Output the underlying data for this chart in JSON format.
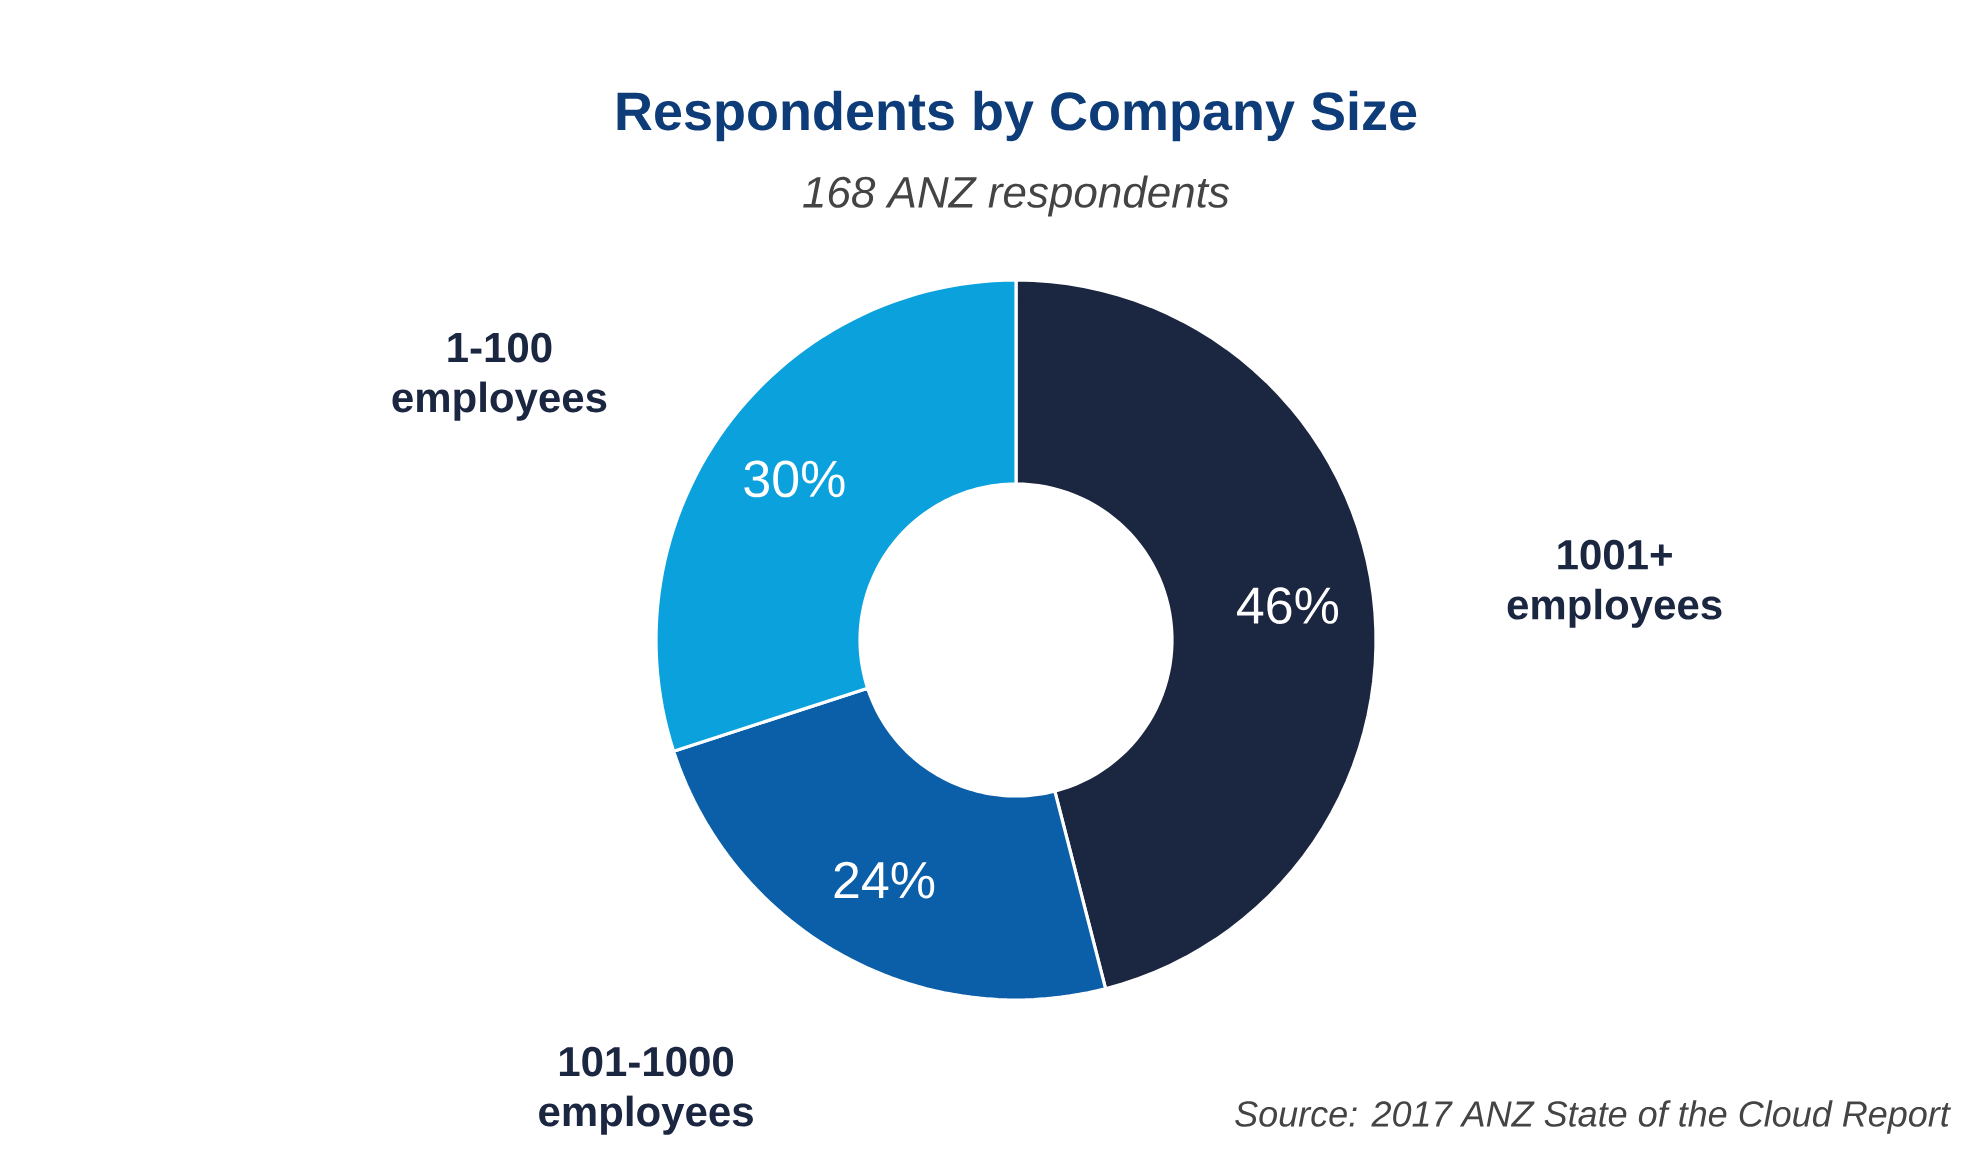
{
  "chart_data": {
    "type": "donut",
    "title": "Respondents by Company Size",
    "subtitle": "168 ANZ respondents",
    "categories": [
      "1001+ employees",
      "101-1000 employees",
      "1-100 employees"
    ],
    "values": [
      46,
      24,
      30
    ],
    "value_labels": [
      "46%",
      "24%",
      "30%"
    ],
    "colors": [
      "#1b2641",
      "#0b5fa9",
      "#0aa1dd"
    ],
    "annotations": [
      "Source: 2017 ANZ State of the Cloud Report"
    ]
  }
}
